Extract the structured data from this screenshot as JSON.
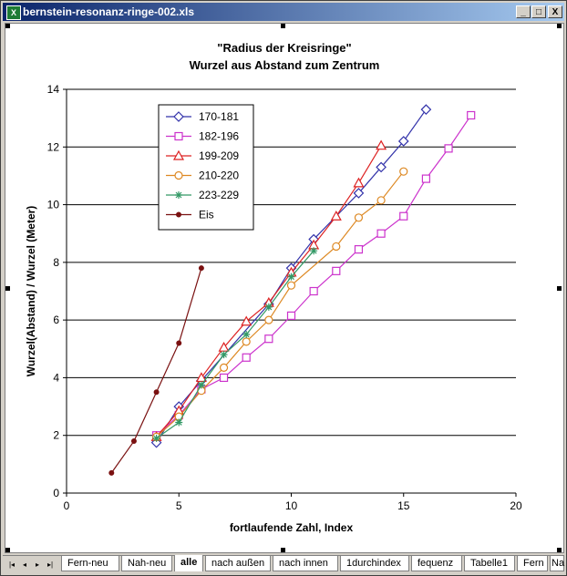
{
  "window": {
    "title": "bernstein-resonanz-ringe-002.xls",
    "icon": "excel-icon",
    "minimize": "_",
    "maximize": "□",
    "close": "X"
  },
  "tabs": {
    "nav": [
      "|◂",
      "◂",
      "▸",
      "▸|"
    ],
    "items": [
      "Fern-neu",
      "Nah-neu",
      "alle",
      "nach außen",
      "nach innen",
      "1durchindex",
      "fequenz",
      "Tabelle1",
      "Fern",
      "Na"
    ],
    "active": "alle"
  },
  "chart_data": {
    "type": "line",
    "title": "\"Radius der Kreisringe\"",
    "subtitle": "Wurzel aus Abstand zum Zentrum",
    "xlabel": "fortlaufende Zahl, Index",
    "ylabel": "Wurzel(Abstand) / Wurzel (Meter)",
    "xlim": [
      0,
      20
    ],
    "ylim": [
      0,
      14
    ],
    "xticks": [
      0,
      5,
      10,
      15,
      20
    ],
    "yticks": [
      0,
      2,
      4,
      6,
      8,
      10,
      12,
      14
    ],
    "grid": "horizontal",
    "legend_position": "top-left",
    "series": [
      {
        "name": "170-181",
        "color": "#3333aa",
        "marker": "diamond",
        "x": [
          4,
          5,
          6,
          9,
          10,
          11,
          13,
          14,
          15,
          16
        ],
        "y": [
          1.75,
          3.0,
          3.9,
          6.55,
          7.8,
          8.8,
          10.4,
          11.3,
          12.2,
          13.3
        ]
      },
      {
        "name": "182-196",
        "color": "#cc33cc",
        "marker": "square",
        "x": [
          4,
          5,
          6,
          7,
          8,
          9,
          10,
          11,
          12,
          13,
          14,
          15,
          16,
          17,
          18
        ],
        "y": [
          2.0,
          2.7,
          3.6,
          4.0,
          4.7,
          5.35,
          6.15,
          7.0,
          7.7,
          8.45,
          9.0,
          9.6,
          10.9,
          11.95,
          13.1
        ]
      },
      {
        "name": "199-209",
        "color": "#dd2222",
        "marker": "triangle",
        "x": [
          4,
          5,
          6,
          7,
          8,
          9,
          10,
          11,
          12,
          13,
          14
        ],
        "y": [
          1.95,
          2.85,
          4.0,
          5.05,
          5.95,
          6.6,
          7.65,
          8.6,
          9.6,
          10.75,
          12.05
        ]
      },
      {
        "name": "210-220",
        "color": "#dd8822",
        "marker": "circle",
        "x": [
          4,
          5,
          6,
          7,
          8,
          9,
          10,
          12,
          13,
          14,
          15
        ],
        "y": [
          1.95,
          2.65,
          3.55,
          4.35,
          5.25,
          6.0,
          7.2,
          8.55,
          9.55,
          10.15,
          11.15
        ]
      },
      {
        "name": "223-229",
        "color": "#339966",
        "marker": "star",
        "x": [
          4,
          5,
          6,
          7,
          8,
          9,
          10,
          11
        ],
        "y": [
          1.9,
          2.45,
          3.75,
          4.8,
          5.5,
          6.45,
          7.5,
          8.4
        ]
      },
      {
        "name": "Eis",
        "color": "#7a1111",
        "marker": "dot",
        "x": [
          2,
          3,
          4,
          5,
          6
        ],
        "y": [
          0.7,
          1.8,
          3.5,
          5.2,
          7.8
        ]
      }
    ]
  }
}
